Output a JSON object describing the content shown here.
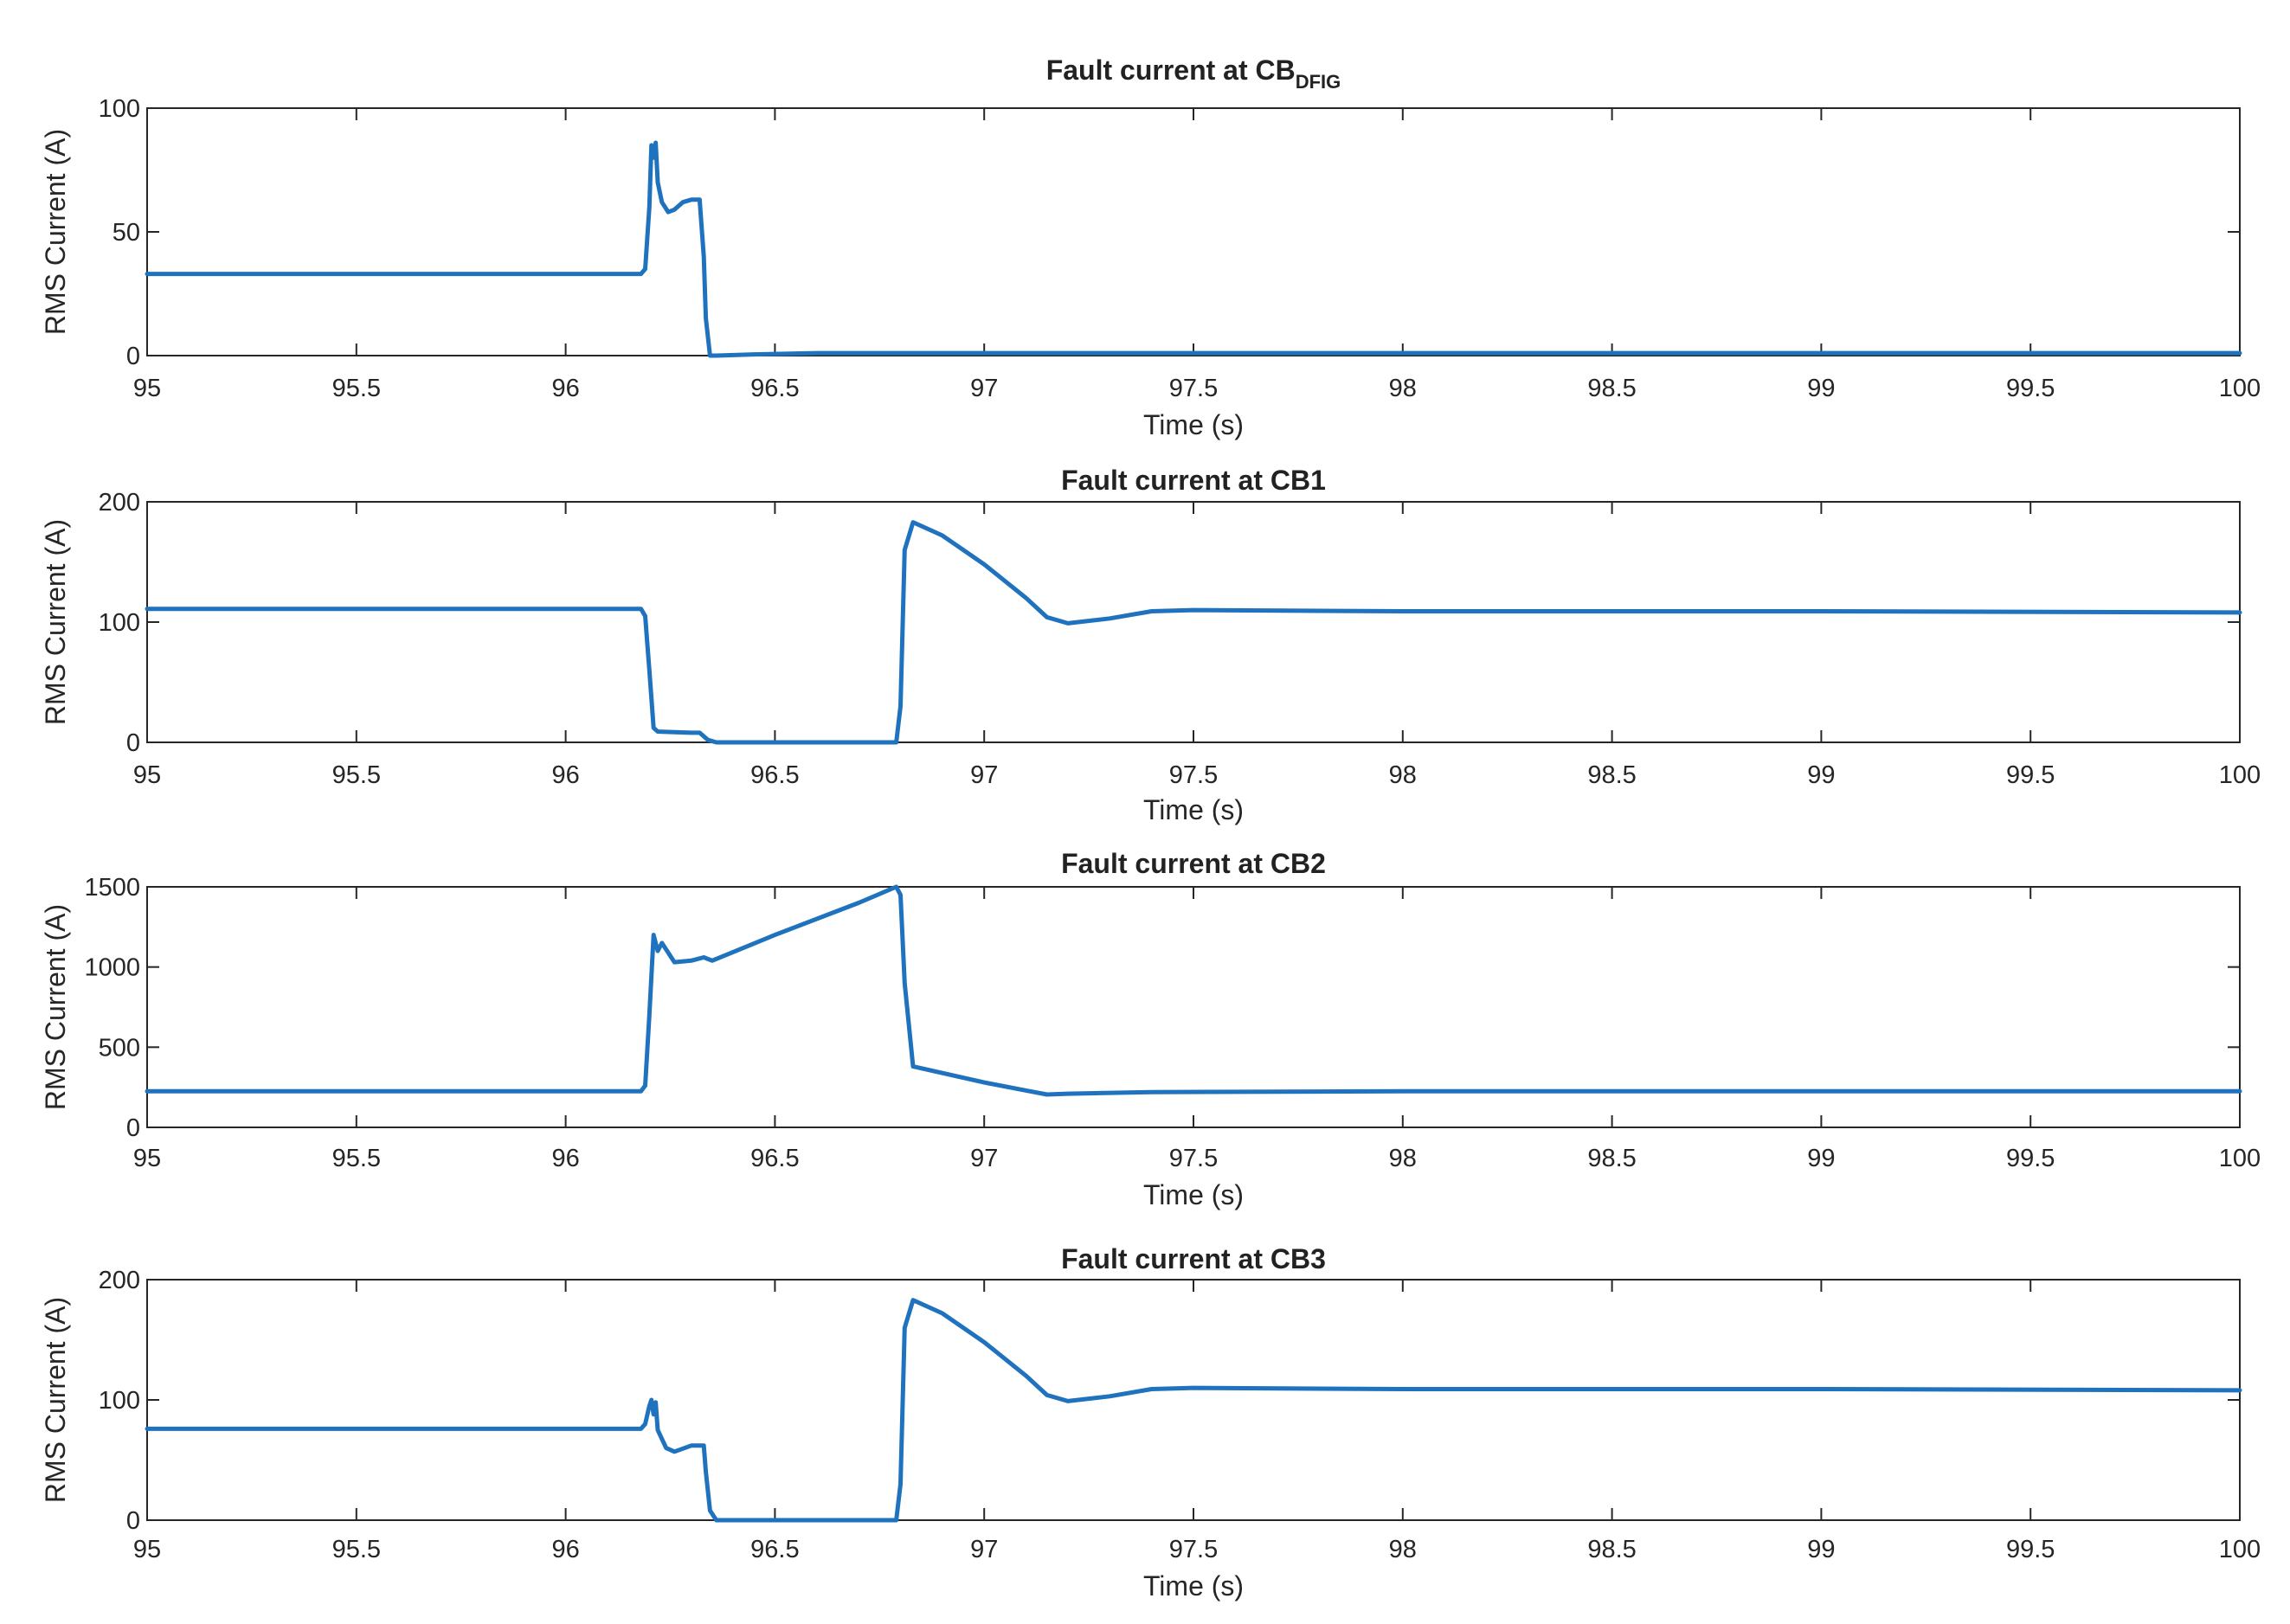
{
  "chart_data": [
    {
      "type": "line",
      "title": "Fault current at CB",
      "title_subscript": "DFIG",
      "xlabel": "Time (s)",
      "ylabel": "RMS Current (A)",
      "xlim": [
        95,
        100
      ],
      "ylim": [
        0,
        100
      ],
      "xticks": [
        "95",
        "95.5",
        "96",
        "96.5",
        "97",
        "97.5",
        "98",
        "98.5",
        "99",
        "99.5",
        "100"
      ],
      "yticks": [
        "0",
        "50",
        "100"
      ],
      "grid": false,
      "line_color": "#1f72bd",
      "series": [
        {
          "x": [
            95,
            96.18,
            96.19,
            96.2,
            96.205,
            96.21,
            96.215,
            96.22,
            96.23,
            96.245,
            96.26,
            96.28,
            96.3,
            96.32,
            96.33,
            96.335,
            96.345,
            96.36,
            96.45,
            96.6,
            97,
            98,
            99,
            100
          ],
          "y": [
            33,
            33,
            35,
            60,
            85,
            80,
            86,
            70,
            62,
            58,
            59,
            62,
            63,
            63,
            40,
            15,
            0,
            0,
            0.5,
            1,
            1,
            1,
            1,
            1
          ]
        }
      ]
    },
    {
      "type": "line",
      "title": "Fault current at CB1",
      "xlabel": "Time (s)",
      "ylabel": "RMS Current (A)",
      "xlim": [
        95,
        100
      ],
      "ylim": [
        0,
        200
      ],
      "xticks": [
        "95",
        "95.5",
        "96",
        "96.5",
        "97",
        "97.5",
        "98",
        "98.5",
        "99",
        "99.5",
        "100"
      ],
      "yticks": [
        "0",
        "100",
        "200"
      ],
      "grid": false,
      "line_color": "#1f72bd",
      "series": [
        {
          "x": [
            95,
            96.18,
            96.19,
            96.2,
            96.21,
            96.22,
            96.3,
            96.32,
            96.34,
            96.36,
            96.5,
            96.79,
            96.8,
            96.81,
            96.83,
            96.9,
            97,
            97.1,
            97.15,
            97.2,
            97.3,
            97.4,
            97.5,
            98,
            99,
            100
          ],
          "y": [
            111,
            111,
            105,
            60,
            12,
            9,
            8,
            8,
            2,
            0,
            0,
            0,
            30,
            160,
            183,
            172,
            148,
            120,
            104,
            99,
            103,
            109,
            110,
            109,
            109,
            108
          ]
        }
      ]
    },
    {
      "type": "line",
      "title": "Fault current at CB2",
      "xlabel": "Time (s)",
      "ylabel": "RMS Current (A)",
      "xlim": [
        95,
        100
      ],
      "ylim": [
        0,
        1500
      ],
      "xticks": [
        "95",
        "95.5",
        "96",
        "96.5",
        "97",
        "97.5",
        "98",
        "98.5",
        "99",
        "99.5",
        "100"
      ],
      "yticks": [
        "0",
        "500",
        "1000",
        "1500"
      ],
      "grid": false,
      "line_color": "#1f72bd",
      "series": [
        {
          "x": [
            95,
            96.18,
            96.19,
            96.2,
            96.21,
            96.22,
            96.23,
            96.26,
            96.3,
            96.33,
            96.35,
            96.5,
            96.7,
            96.79,
            96.8,
            96.81,
            96.83,
            97,
            97.1,
            97.15,
            97.2,
            97.4,
            98,
            99,
            100
          ],
          "y": [
            225,
            225,
            260,
            700,
            1200,
            1100,
            1150,
            1030,
            1040,
            1060,
            1040,
            1200,
            1400,
            1500,
            1450,
            900,
            380,
            280,
            230,
            205,
            210,
            220,
            225,
            225,
            225
          ]
        }
      ]
    },
    {
      "type": "line",
      "title": "Fault current at CB3",
      "xlabel": "Time (s)",
      "ylabel": "RMS Current (A)",
      "xlim": [
        95,
        100
      ],
      "ylim": [
        0,
        200
      ],
      "xticks": [
        "95",
        "95.5",
        "96",
        "96.5",
        "97",
        "97.5",
        "98",
        "98.5",
        "99",
        "99.5",
        "100"
      ],
      "yticks": [
        "0",
        "100",
        "200"
      ],
      "grid": false,
      "line_color": "#1f72bd",
      "series": [
        {
          "x": [
            95,
            96.18,
            96.19,
            96.2,
            96.205,
            96.21,
            96.215,
            96.22,
            96.24,
            96.26,
            96.3,
            96.33,
            96.335,
            96.345,
            96.36,
            96.5,
            96.79,
            96.8,
            96.81,
            96.83,
            96.9,
            97,
            97.1,
            97.15,
            97.2,
            97.3,
            97.4,
            97.5,
            98,
            99,
            100
          ],
          "y": [
            76,
            76,
            80,
            95,
            100,
            88,
            98,
            75,
            60,
            57,
            62,
            62,
            40,
            8,
            0,
            0,
            0,
            30,
            160,
            183,
            172,
            148,
            120,
            104,
            99,
            103,
            109,
            110,
            109,
            109,
            108
          ]
        }
      ]
    }
  ]
}
